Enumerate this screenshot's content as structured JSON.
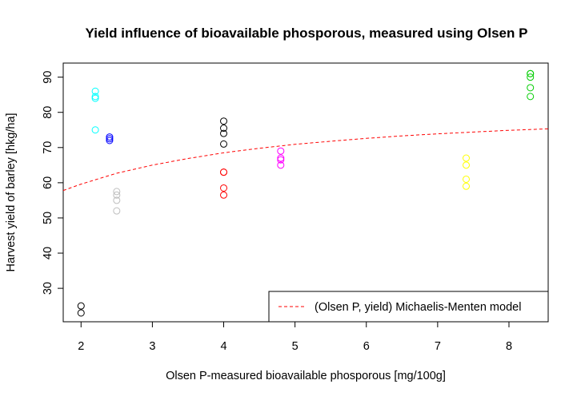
{
  "chart_data": {
    "type": "scatter",
    "title": "Yield influence of bioavailable phosporous, measured using Olsen P",
    "xlabel": "Olsen P-measured bioavailable phosporous [mg/100g]",
    "ylabel": "Harvest yield of barley [hkg/ha]",
    "xlim": [
      1.75,
      8.55
    ],
    "ylim": [
      20.5,
      94
    ],
    "x_ticks": [
      2,
      3,
      4,
      5,
      6,
      7,
      8
    ],
    "y_ticks": [
      30,
      40,
      50,
      60,
      70,
      80,
      90
    ],
    "grid": false,
    "legend_position": "bottom-right",
    "series": [
      {
        "color": "#000000",
        "x": [
          2.0,
          2.0
        ],
        "y": [
          23,
          25
        ]
      },
      {
        "color": "#00ffff",
        "x": [
          2.2,
          2.2,
          2.2,
          2.2
        ],
        "y": [
          75,
          84,
          84.5,
          86
        ]
      },
      {
        "color": "#0000ff",
        "x": [
          2.4,
          2.4,
          2.4
        ],
        "y": [
          72,
          72.5,
          73
        ]
      },
      {
        "color": "#bebebe",
        "x": [
          2.5,
          2.5,
          2.5,
          2.5
        ],
        "y": [
          52,
          55,
          56.5,
          57.5
        ]
      },
      {
        "color": "#000000",
        "x": [
          4.0,
          4.0,
          4.0,
          4.0
        ],
        "y": [
          71,
          74,
          75.5,
          77.5
        ]
      },
      {
        "color": "#ff0000",
        "x": [
          4.0,
          4.0,
          4.0,
          4.0
        ],
        "y": [
          56.5,
          58.5,
          63,
          63
        ]
      },
      {
        "color": "#ff00ff",
        "x": [
          4.8,
          4.8,
          4.8,
          4.8
        ],
        "y": [
          65,
          66.5,
          67,
          69
        ]
      },
      {
        "color": "#ffff00",
        "x": [
          7.4,
          7.4,
          7.4,
          7.4
        ],
        "y": [
          59,
          61,
          65,
          67
        ]
      },
      {
        "color": "#00cd00",
        "x": [
          8.3,
          8.3,
          8.3,
          8.3,
          8.3
        ],
        "y": [
          84.5,
          87,
          90,
          91,
          91
        ]
      }
    ],
    "model_curve": {
      "name": "(Olsen P, yield) Michaelis-Menten model",
      "color": "#ff0000",
      "style": "dashed",
      "x": [
        1.75,
        2.0,
        2.5,
        3.0,
        3.5,
        4.0,
        4.5,
        5.0,
        5.5,
        6.0,
        6.5,
        7.0,
        7.5,
        8.0,
        8.55
      ],
      "y": [
        57.8,
        59.6,
        62.7,
        65.0,
        66.9,
        68.5,
        69.8,
        70.9,
        71.8,
        72.6,
        73.3,
        73.9,
        74.4,
        74.9,
        75.3
      ]
    }
  }
}
